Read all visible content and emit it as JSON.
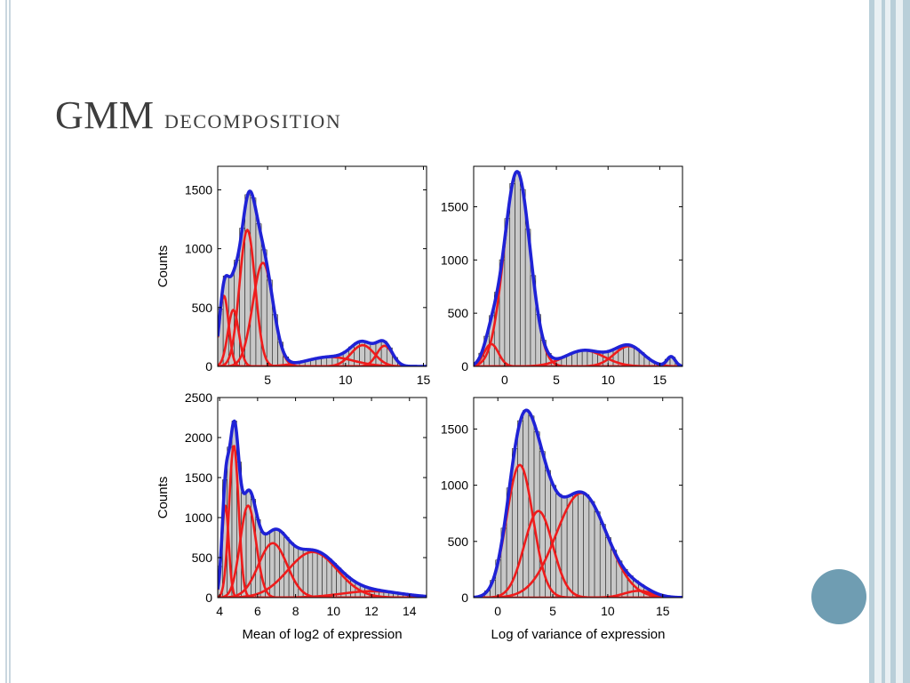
{
  "slide": {
    "title_first": "GMM",
    "title_second": "decomposition",
    "colors": {
      "histogram_fill": "#c8c8c8",
      "mixture_total": "#1f22d6",
      "components": "#ee1c1c",
      "accent_circle": "#6f9db2",
      "stripe_blue": "#b9cfd9",
      "stripe_light": "#e9f0f3"
    }
  },
  "chart_data": [
    {
      "type": "bar",
      "ylabel": "Counts",
      "xlabel": "",
      "xlim": [
        1.8,
        15.2
      ],
      "ylim": [
        0,
        1700
      ],
      "xticks": [
        5,
        10,
        15
      ],
      "yticks": [
        0,
        500,
        1000,
        1500
      ],
      "bin_width": 0.35,
      "components": [
        {
          "mean": 2.2,
          "sd": 0.3,
          "peak": 600
        },
        {
          "mean": 2.8,
          "sd": 0.35,
          "peak": 480
        },
        {
          "mean": 3.7,
          "sd": 0.5,
          "peak": 1160
        },
        {
          "mean": 4.7,
          "sd": 0.65,
          "peak": 880
        },
        {
          "mean": 9.0,
          "sd": 1.5,
          "peak": 80
        },
        {
          "mean": 11.1,
          "sd": 0.75,
          "peak": 180
        },
        {
          "mean": 12.5,
          "sd": 0.5,
          "peak": 175
        }
      ]
    },
    {
      "type": "bar",
      "ylabel": "",
      "xlabel": "",
      "xlim": [
        -3,
        17.2
      ],
      "ylim": [
        0,
        1880
      ],
      "xticks": [
        0,
        5,
        10,
        15
      ],
      "yticks": [
        0,
        500,
        1000,
        1500
      ],
      "bin_width": 0.5,
      "components": [
        {
          "mean": -1.3,
          "sd": 0.7,
          "peak": 210
        },
        {
          "mean": 1.2,
          "sd": 1.25,
          "peak": 1830
        },
        {
          "mean": 7.7,
          "sd": 1.9,
          "peak": 150
        },
        {
          "mean": 12.0,
          "sd": 1.4,
          "peak": 190
        },
        {
          "mean": 16.1,
          "sd": 0.4,
          "peak": 90
        }
      ]
    },
    {
      "type": "bar",
      "ylabel": "Counts",
      "xlabel": "Mean of log2 of expression",
      "xlim": [
        3.9,
        14.9
      ],
      "ylim": [
        0,
        2500
      ],
      "xticks": [
        4,
        6,
        8,
        10,
        12,
        14
      ],
      "yticks": [
        0,
        500,
        1000,
        1500,
        2000,
        2500
      ],
      "bin_width": 0.25,
      "components": [
        {
          "mean": 4.3,
          "sd": 0.18,
          "peak": 1150
        },
        {
          "mean": 4.75,
          "sd": 0.25,
          "peak": 1900
        },
        {
          "mean": 5.5,
          "sd": 0.42,
          "peak": 1150
        },
        {
          "mean": 6.8,
          "sd": 0.75,
          "peak": 680
        },
        {
          "mean": 8.9,
          "sd": 1.3,
          "peak": 570
        },
        {
          "mean": 12.0,
          "sd": 1.6,
          "peak": 80
        }
      ]
    },
    {
      "type": "bar",
      "ylabel": "",
      "xlabel": "Log of variance of expression",
      "xlim": [
        -2.2,
        16.8
      ],
      "ylim": [
        0,
        1780
      ],
      "xticks": [
        0,
        5,
        10,
        15
      ],
      "yticks": [
        0,
        500,
        1000,
        1500
      ],
      "bin_width": 0.5,
      "components": [
        {
          "mean": 2.0,
          "sd": 1.2,
          "peak": 1180
        },
        {
          "mean": 3.7,
          "sd": 1.3,
          "peak": 770
        },
        {
          "mean": 7.6,
          "sd": 2.3,
          "peak": 930
        },
        {
          "mean": 12.8,
          "sd": 1.3,
          "peak": 60
        }
      ]
    }
  ]
}
